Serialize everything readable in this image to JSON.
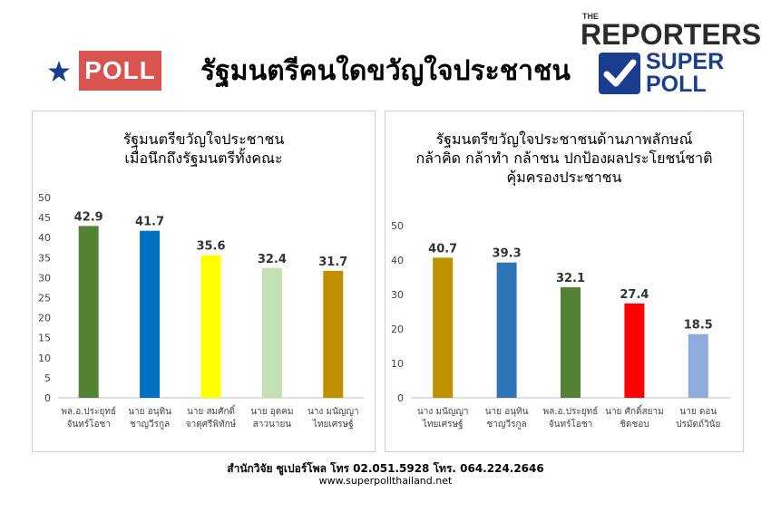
{
  "header": {
    "poll_label": "POLL",
    "title": "รัฐมนตรีคนใดขวัญใจประชาชน",
    "logo_the": "THE",
    "logo_reporters": "REPORTERS",
    "logo_super": "SUPER",
    "logo_poll": "POLL",
    "colors": {
      "poll_badge": "#d9534f",
      "star": "#1a3d8f",
      "super_poll": "#1a3d8f"
    }
  },
  "chart_data": [
    {
      "type": "bar",
      "title_lines": [
        "รัฐมนตรีขวัญใจประชาชน",
        "เมื่อนึกถึงรัฐมนตรีทั้งคณะ"
      ],
      "categories": [
        [
          "พล.อ.ประยุทธ์",
          "จันทร์โอชา"
        ],
        [
          "นาย อนุทิน",
          "ชาญวีรกูล"
        ],
        [
          "นาย สมศักดิ์",
          "จาตุศรีพิทักษ์"
        ],
        [
          "นาย อุดคม",
          "สาวนายน"
        ],
        [
          "นาง มนัญญา",
          "ไทยเศรษฐ์"
        ]
      ],
      "values": [
        42.9,
        41.7,
        35.6,
        32.4,
        31.7
      ],
      "value_labels": [
        "42.9",
        "41.7",
        "35.6",
        "32.4",
        "31.7"
      ],
      "colors": [
        "#548235",
        "#0070c0",
        "#ffff00",
        "#c5e0b4",
        "#bf9000"
      ],
      "ylim": [
        0,
        50
      ],
      "yticks": [
        "0",
        "5",
        "10",
        "15",
        "20",
        "25",
        "30",
        "35",
        "40",
        "45",
        "50"
      ],
      "grid": false
    },
    {
      "type": "bar",
      "title_lines": [
        "รัฐมนตรีขวัญใจประชาชนด้านภาพลักษณ์",
        "กล้าคิด กล้าทำ กล้าชน ปกป้องผลประโยชน์ชาติ",
        "คุ้มครองประชาชน"
      ],
      "categories": [
        [
          "นาง มนัญญา",
          "ไทยเศรษฐ์"
        ],
        [
          "นาย อนุทิน",
          "ชาญวีรกูล"
        ],
        [
          "พล.อ.ประยุทธ์",
          "จันทร์โอชา"
        ],
        [
          "นาย ศักดิ์สยาม",
          "ชิดชอบ"
        ],
        [
          "นาย ดอน",
          "ปรมัตถ์วินัย"
        ]
      ],
      "values": [
        40.7,
        39.3,
        32.1,
        27.4,
        18.5
      ],
      "value_labels": [
        "40.7",
        "39.3",
        "32.1",
        "27.4",
        "18.5"
      ],
      "colors": [
        "#bf9000",
        "#2e75b6",
        "#548235",
        "#ff0000",
        "#8faadc"
      ],
      "ylim": [
        0,
        50
      ],
      "yticks": [
        "0",
        "10",
        "20",
        "30",
        "40",
        "50"
      ],
      "grid": false
    }
  ],
  "footer": {
    "line1": "สำนักวิจัย ซูเปอร์โพล โทร 02.051.5928  โทร. 064.224.2646",
    "line2": "www.superpollthailand.net"
  }
}
